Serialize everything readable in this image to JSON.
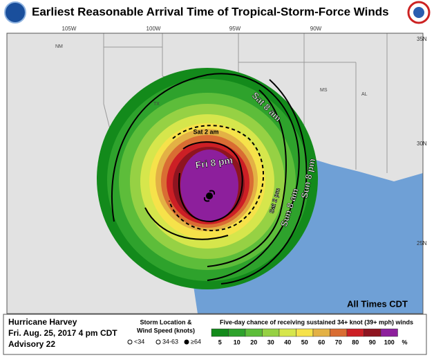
{
  "header": {
    "title": "Earliest Reasonable Arrival Time of Tropical-Storm-Force Winds"
  },
  "map": {
    "longitude_labels": [
      "105W",
      "100W",
      "95W",
      "90W"
    ],
    "latitude_labels": [
      "35N",
      "30N",
      "25N"
    ],
    "state_labels": [
      "NM",
      "TX",
      "MS",
      "AL"
    ],
    "arrival_labels": [
      "Sat 8 am",
      "Sat 2 am",
      "Fri 8 pm",
      "Sat 2 pm",
      "Sun 8 am",
      "Sun 8 pm"
    ],
    "time_zone_note": "All Times CDT"
  },
  "footer": {
    "storm_name": "Hurricane Harvey",
    "issued": "Fri. Aug. 25, 2017  4 pm CDT",
    "advisory": "Advisory 22",
    "storm_legend": {
      "title_line1": "Storm Location &",
      "title_line2": "Wind Speed (knots)",
      "items": [
        "<34",
        "34-63",
        "≥64"
      ]
    },
    "probability_legend": {
      "title": "Five-day chance of receiving sustained 34+ knot (39+ mph) winds",
      "levels": [
        {
          "value": 5,
          "color": "#138a1b"
        },
        {
          "value": 10,
          "color": "#2ea22c"
        },
        {
          "value": 20,
          "color": "#5dbd3a"
        },
        {
          "value": 30,
          "color": "#96d144"
        },
        {
          "value": 40,
          "color": "#d6e64c"
        },
        {
          "value": 50,
          "color": "#f6e24a"
        },
        {
          "value": 60,
          "color": "#e3b145"
        },
        {
          "value": 70,
          "color": "#d96d33"
        },
        {
          "value": 80,
          "color": "#cc1f25"
        },
        {
          "value": 90,
          "color": "#8e1420"
        },
        {
          "value": 100,
          "color": "#8d1f9c"
        }
      ],
      "unit": "%"
    }
  }
}
